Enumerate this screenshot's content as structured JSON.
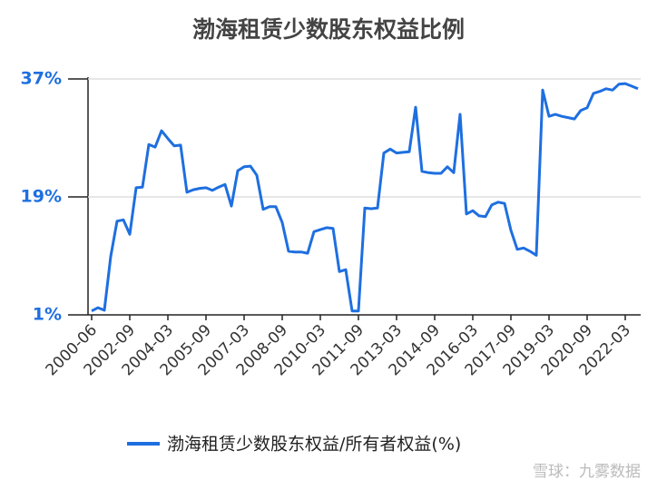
{
  "chart_data": {
    "type": "line",
    "title": "渤海租赁少数股东权益比例",
    "categories": [
      "2000-06",
      null,
      null,
      null,
      null,
      null,
      "2002-09",
      null,
      null,
      null,
      null,
      null,
      "2004-03",
      null,
      null,
      null,
      null,
      null,
      "2005-09",
      null,
      null,
      null,
      null,
      null,
      "2007-03",
      null,
      null,
      null,
      null,
      null,
      "2008-09",
      null,
      null,
      null,
      null,
      null,
      "2010-03",
      null,
      null,
      null,
      null,
      null,
      "2011-09",
      null,
      null,
      null,
      null,
      null,
      "2013-03",
      null,
      null,
      null,
      null,
      null,
      "2014-09",
      null,
      null,
      null,
      null,
      null,
      "2016-03",
      null,
      null,
      null,
      null,
      null,
      "2017-09",
      null,
      null,
      null,
      null,
      null,
      "2019-03",
      null,
      null,
      null,
      null,
      null,
      "2020-09",
      null,
      null,
      null,
      null,
      null,
      "2022-03",
      null,
      null
    ],
    "series": [
      {
        "name": "渤海租赁少数股东权益/所有者权益(%)",
        "color": "#1e6fe0",
        "values": [
          1.6,
          2.1,
          1.7,
          9.9,
          15.3,
          15.5,
          13.3,
          20.4,
          20.5,
          27.0,
          26.6,
          29.1,
          27.9,
          26.8,
          26.9,
          19.7,
          20.1,
          20.3,
          20.4,
          20.0,
          20.5,
          20.9,
          17.6,
          23.0,
          23.6,
          23.7,
          22.3,
          17.1,
          17.5,
          17.5,
          15.1,
          10.7,
          10.6,
          10.6,
          10.4,
          13.7,
          14.0,
          14.3,
          14.2,
          7.6,
          7.9,
          1.6,
          1.6,
          17.3,
          17.2,
          17.3,
          25.7,
          26.3,
          25.7,
          25.8,
          25.9,
          32.7,
          22.9,
          22.7,
          22.6,
          22.6,
          23.6,
          22.7,
          31.6,
          16.4,
          16.9,
          16.1,
          16.0,
          17.8,
          18.2,
          18.0,
          13.9,
          11.0,
          11.2,
          10.7,
          10.1,
          35.3,
          31.3,
          31.6,
          31.3,
          31.1,
          30.9,
          32.2,
          32.6,
          34.8,
          35.1,
          35.5,
          35.3,
          36.2,
          36.3,
          35.9,
          35.5
        ]
      }
    ],
    "ylim": [
      1,
      37
    ],
    "yticks": [
      {
        "value": 1,
        "label": "1%"
      },
      {
        "value": 19,
        "label": "19%"
      },
      {
        "value": 37,
        "label": "37%"
      }
    ],
    "grid": true,
    "watermark": "雪球：九雾数据"
  }
}
